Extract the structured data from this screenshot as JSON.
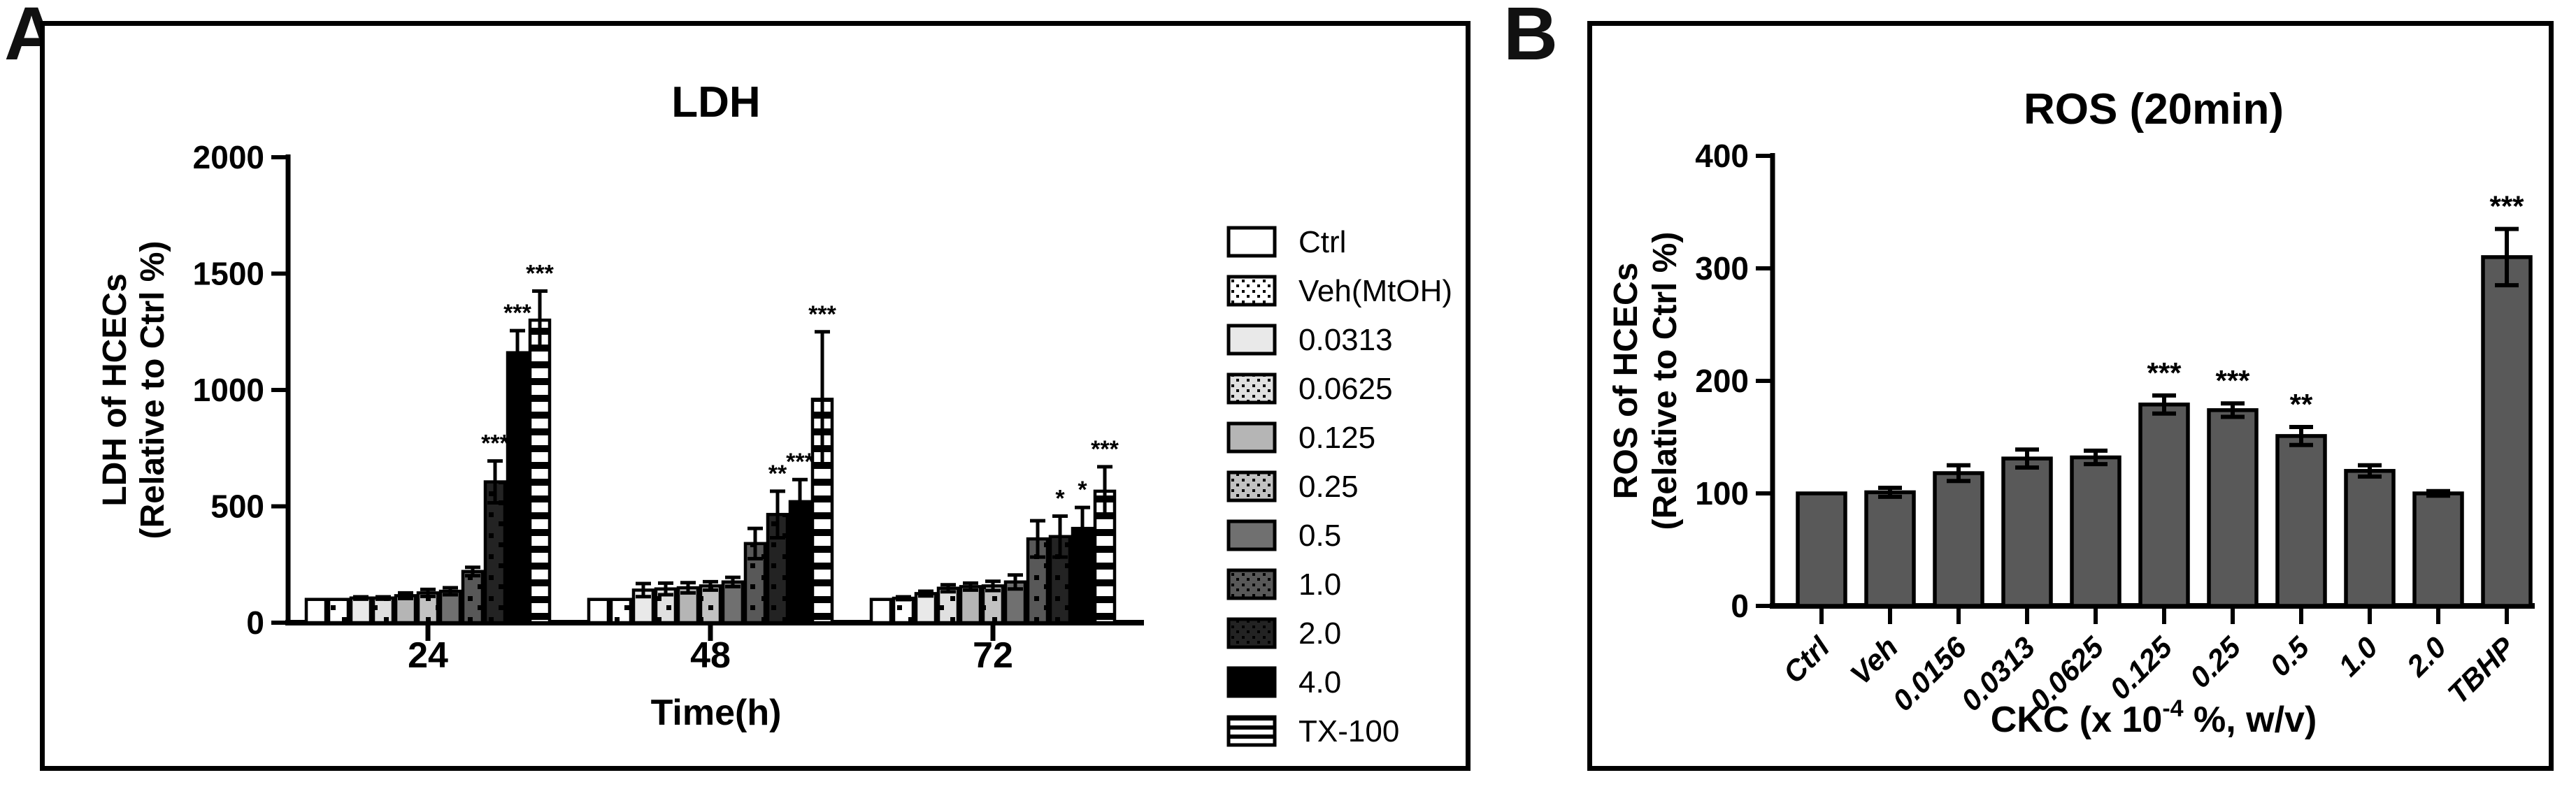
{
  "figure_background": "#ffffff",
  "line_color": "#000000",
  "chart_data": [
    {
      "type": "bar",
      "panel_label": "A",
      "title": "LDH",
      "xlabel": "Time(h)",
      "ylabel_line1": "LDH of HCECs",
      "ylabel_line2": "(Relative to Ctrl %)",
      "ylim": [
        0,
        2000
      ],
      "yticks": [
        0,
        500,
        1000,
        1500,
        2000
      ],
      "categories": [
        "24",
        "48",
        "72"
      ],
      "grid": "off",
      "legend_position": "right",
      "series": [
        {
          "name": "Ctrl",
          "fill": "#ffffff",
          "pattern": "none",
          "values": [
            100,
            100,
            100
          ],
          "errors": [
            0,
            0,
            0
          ],
          "sig": [
            "",
            "",
            ""
          ]
        },
        {
          "name": "Veh(MtOH)",
          "fill": "#ffffff",
          "pattern": "dots",
          "values": [
            100,
            100,
            105
          ],
          "errors": [
            0,
            0,
            6
          ],
          "sig": [
            "",
            "",
            ""
          ]
        },
        {
          "name": "0.0313",
          "fill": "#e9e9e9",
          "pattern": "none",
          "values": [
            106,
            140,
            125
          ],
          "errors": [
            5,
            28,
            10
          ],
          "sig": [
            "",
            "",
            ""
          ]
        },
        {
          "name": "0.0625",
          "fill": "#e0e0e0",
          "pattern": "dots",
          "values": [
            106,
            145,
            148
          ],
          "errors": [
            5,
            25,
            15
          ],
          "sig": [
            "",
            "",
            ""
          ]
        },
        {
          "name": "0.125",
          "fill": "#b5b5b5",
          "pattern": "none",
          "values": [
            116,
            150,
            155
          ],
          "errors": [
            12,
            22,
            15
          ],
          "sig": [
            "",
            "",
            ""
          ]
        },
        {
          "name": "0.25",
          "fill": "#c2c2c2",
          "pattern": "dots",
          "values": [
            128,
            158,
            158
          ],
          "errors": [
            15,
            18,
            20
          ],
          "sig": [
            "",
            "",
            ""
          ]
        },
        {
          "name": "0.5",
          "fill": "#707070",
          "pattern": "none",
          "values": [
            135,
            175,
            175
          ],
          "errors": [
            15,
            20,
            30
          ],
          "sig": [
            "",
            "",
            ""
          ]
        },
        {
          "name": "1.0",
          "fill": "#585858",
          "pattern": "dots",
          "values": [
            220,
            340,
            360
          ],
          "errors": [
            18,
            65,
            78
          ],
          "sig": [
            "",
            "",
            ""
          ]
        },
        {
          "name": "2.0",
          "fill": "#232323",
          "pattern": "dots",
          "values": [
            605,
            465,
            370
          ],
          "errors": [
            90,
            100,
            88
          ],
          "sig": [
            "***",
            "**",
            "*"
          ]
        },
        {
          "name": "4.0",
          "fill": "#000000",
          "pattern": "none",
          "values": [
            1160,
            520,
            405
          ],
          "errors": [
            95,
            95,
            90
          ],
          "sig": [
            "***",
            "***",
            "*"
          ]
        },
        {
          "name": "TX-100",
          "fill": "#ffffff",
          "pattern": "hstripes",
          "values": [
            1300,
            960,
            565
          ],
          "errors": [
            125,
            290,
            105
          ],
          "sig": [
            "***",
            "***",
            "***"
          ]
        }
      ]
    },
    {
      "type": "bar",
      "panel_label": "B",
      "title": "ROS (20min)",
      "xlabel_parts": [
        "CKC (x 10",
        "-4",
        " %, w/v)"
      ],
      "ylabel_line1": "ROS of HCECs",
      "ylabel_line2": "(Relative to Ctrl %)",
      "ylim": [
        0,
        400
      ],
      "yticks": [
        0,
        100,
        200,
        300,
        400
      ],
      "grid": "off",
      "bar_fill": "#595959",
      "categories": [
        "Ctrl",
        "Veh",
        "0.0156",
        "0.0313",
        "0.0625",
        "0.125",
        "0.25",
        "0.5",
        "1.0",
        "2.0",
        "TBHP"
      ],
      "values": [
        100,
        101,
        118,
        131,
        132,
        179,
        174,
        151,
        120,
        100,
        310
      ],
      "errors": [
        0,
        4,
        7,
        8,
        6,
        8,
        6,
        8,
        5,
        2,
        25
      ],
      "sig": [
        "",
        "",
        "",
        "",
        "",
        "***",
        "***",
        "**",
        "",
        "",
        "***"
      ]
    }
  ]
}
